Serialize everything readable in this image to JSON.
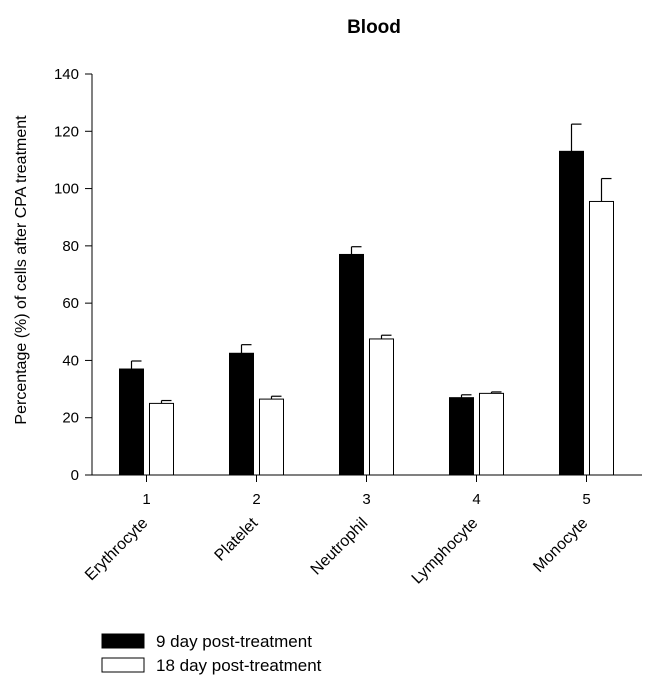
{
  "chart_data": {
    "type": "bar",
    "title": "Blood",
    "xlabel": "",
    "ylabel": "Percentage (%) of cells after CPA treatment",
    "ylim": [
      0,
      140
    ],
    "yticks": [
      0,
      20,
      40,
      60,
      80,
      100,
      120,
      140
    ],
    "x": [
      "1",
      "2",
      "3",
      "4",
      "5"
    ],
    "categories": [
      "Erythrocyte",
      "Platelet",
      "Neutrophil",
      "Lymphocyte",
      "Monocyte"
    ],
    "series": [
      {
        "name": "9 day post-treatment",
        "color": "#000000",
        "values": [
          37,
          42.5,
          77,
          27,
          113
        ],
        "errors": [
          2.8,
          3,
          2.7,
          1,
          9.5
        ]
      },
      {
        "name": "18 day post-treatment",
        "color": "#ffffff",
        "values": [
          25,
          26.5,
          47.5,
          28.5,
          95.5
        ],
        "errors": [
          1,
          1,
          1.3,
          0.5,
          8
        ]
      }
    ],
    "grid": false,
    "legend_position": "bottom-left"
  }
}
